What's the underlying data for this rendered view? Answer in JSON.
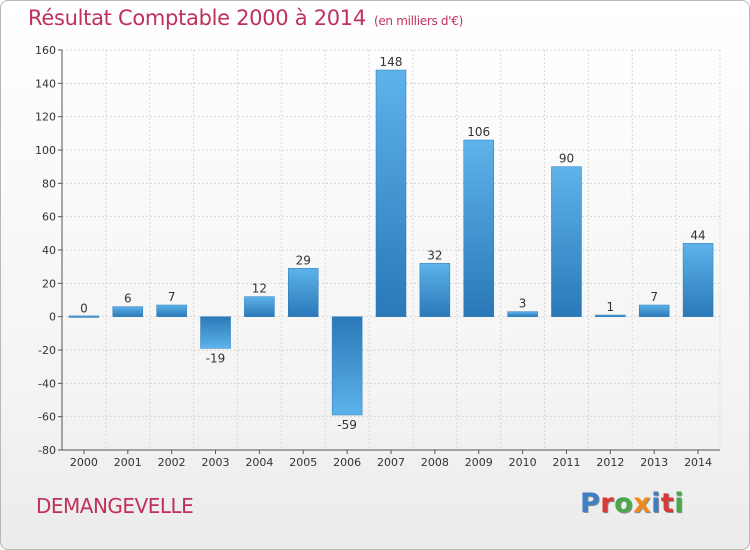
{
  "header": {
    "title": "Résultat Comptable 2000 à 2014",
    "unit": "(en milliers d'€)"
  },
  "footer": {
    "location": "DEMANGEVELLE",
    "brand": "Proxiti",
    "brand_colors": [
      "#3c7fc4",
      "#d63a3a",
      "#4aa84a",
      "#f08a1c",
      "#3c7fc4",
      "#d63a3a",
      "#4aa84a"
    ]
  },
  "colors": {
    "bar": "#3a8fd2",
    "bar_light": "#5db3ea",
    "bar_dark": "#2a78b8",
    "title": "#c0305a",
    "grid": "#d8d8d8"
  },
  "chart_data": {
    "type": "bar",
    "categories": [
      "2000",
      "2001",
      "2002",
      "2003",
      "2004",
      "2005",
      "2006",
      "2007",
      "2008",
      "2009",
      "2010",
      "2011",
      "2012",
      "2013",
      "2014"
    ],
    "values": [
      0,
      6,
      7,
      -19,
      12,
      29,
      -59,
      148,
      32,
      106,
      3,
      90,
      1,
      7,
      44
    ],
    "labels": [
      "0",
      "6",
      "7",
      "-19",
      "12",
      "29",
      "-59",
      "148",
      "32",
      "106",
      "3",
      "90",
      "1",
      "7",
      "44"
    ],
    "ylim": [
      -80,
      160
    ],
    "yticks": [
      -80,
      -60,
      -40,
      -20,
      0,
      20,
      40,
      60,
      80,
      100,
      120,
      140,
      160
    ],
    "grid": true,
    "legend": "none"
  }
}
